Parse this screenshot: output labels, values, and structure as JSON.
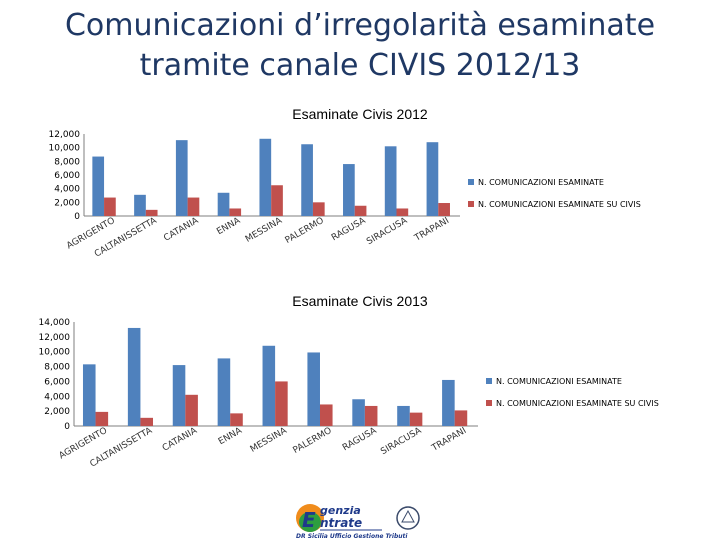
{
  "slide_title_line1": "Comunicazioni d’irregolarità esaminate",
  "slide_title_line2": "tramite canale CIVIS 2012/13",
  "logo": {
    "line1": "genzia",
    "line2": "ntrate",
    "line3": "DR Sicilia Ufficio Gestione Tributi",
    "colors": {
      "blue": "#1f3a8a",
      "orange": "#f08c1c",
      "green": "#2e9e3f"
    }
  },
  "colors": {
    "series1": "#4f81bd",
    "series2": "#c0504d",
    "axis": "#7f7f7f"
  },
  "chart_data": [
    {
      "type": "bar",
      "title": "Esaminate Civis 2012",
      "categories": [
        "AGRIGENTO",
        "CALTANISSETTA",
        "CATANIA",
        "ENNA",
        "MESSINA",
        "PALERMO",
        "RAGUSA",
        "SIRACUSA",
        "TRAPANI"
      ],
      "yticks": [
        "12,000",
        "10,000",
        "8,000",
        "6,000",
        "4,000",
        "2,000",
        "0"
      ],
      "ylim": [
        0,
        12000
      ],
      "legend_position": "right",
      "series": [
        {
          "name": "N. COMUNICAZIONI ESAMINATE",
          "values": [
            8700,
            3100,
            11100,
            3400,
            11300,
            10500,
            7600,
            10200,
            10800
          ]
        },
        {
          "name": "N. COMUNICAZIONI ESAMINATE SU CIVIS",
          "values": [
            2700,
            900,
            2700,
            1100,
            4500,
            2000,
            1500,
            1100,
            1900
          ]
        }
      ]
    },
    {
      "type": "bar",
      "title": "Esaminate Civis 2013",
      "categories": [
        "AGRIGENTO",
        "CALTANISSETTA",
        "CATANIA",
        "ENNA",
        "MESSINA",
        "PALERMO",
        "RAGUSA",
        "SIRACUSA",
        "TRAPANI"
      ],
      "yticks": [
        "14,000",
        "12,000",
        "10,000",
        "8,000",
        "6,000",
        "4,000",
        "2,000",
        "0"
      ],
      "ylim": [
        0,
        14000
      ],
      "legend_position": "right",
      "series": [
        {
          "name": "N. COMUNICAZIONI ESAMINATE",
          "values": [
            8300,
            13200,
            8200,
            9100,
            10800,
            9900,
            3600,
            2700,
            6200
          ]
        },
        {
          "name": "N. COMUNICAZIONI ESAMINATE SU CIVIS",
          "values": [
            1900,
            1100,
            4200,
            1700,
            6000,
            2900,
            2700,
            1800,
            2100
          ]
        }
      ]
    }
  ]
}
